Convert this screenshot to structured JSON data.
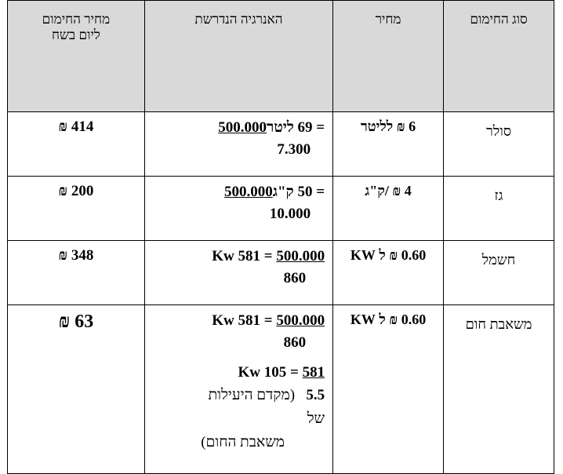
{
  "headers": {
    "type": "סוג החימום",
    "price": "מחיר",
    "energy": "האנרגיה  הנדרשת",
    "daily_line1": "מחיר החימום",
    "daily_line2": "ליום בשח"
  },
  "rows": [
    {
      "type": "סולר",
      "price": "6 ₪ לליטר",
      "energy_numer": "500.000",
      "energy_result": " = 69 ליטר",
      "energy_denom": "7.300",
      "daily": "414 ₪"
    },
    {
      "type": "גז",
      "price": "4 ₪ /ק\"ג",
      "energy_numer": "500.000",
      "energy_result": " = 50 ק\"ג",
      "energy_denom": "10.000",
      "daily": "200 ₪"
    },
    {
      "type": "חשמל",
      "price": "0.60 ₪ ל KW",
      "energy_numer": "500.000",
      "energy_result": "Kw 581 = ",
      "energy_denom": "860",
      "daily": "348 ₪"
    },
    {
      "type": "משאבת חום",
      "price": "0.60 ₪ ל KW",
      "energy_numer": "500.000",
      "energy_result": "Kw 581 = ",
      "energy_denom": "860",
      "second_numer": "581",
      "second_result": "Kw 105 = ",
      "second_denom": "5.5",
      "note_a": "(מקדם היעילות",
      "note_b": "של",
      "note_c": "משאבת החום)",
      "daily": "63 ₪"
    }
  ]
}
